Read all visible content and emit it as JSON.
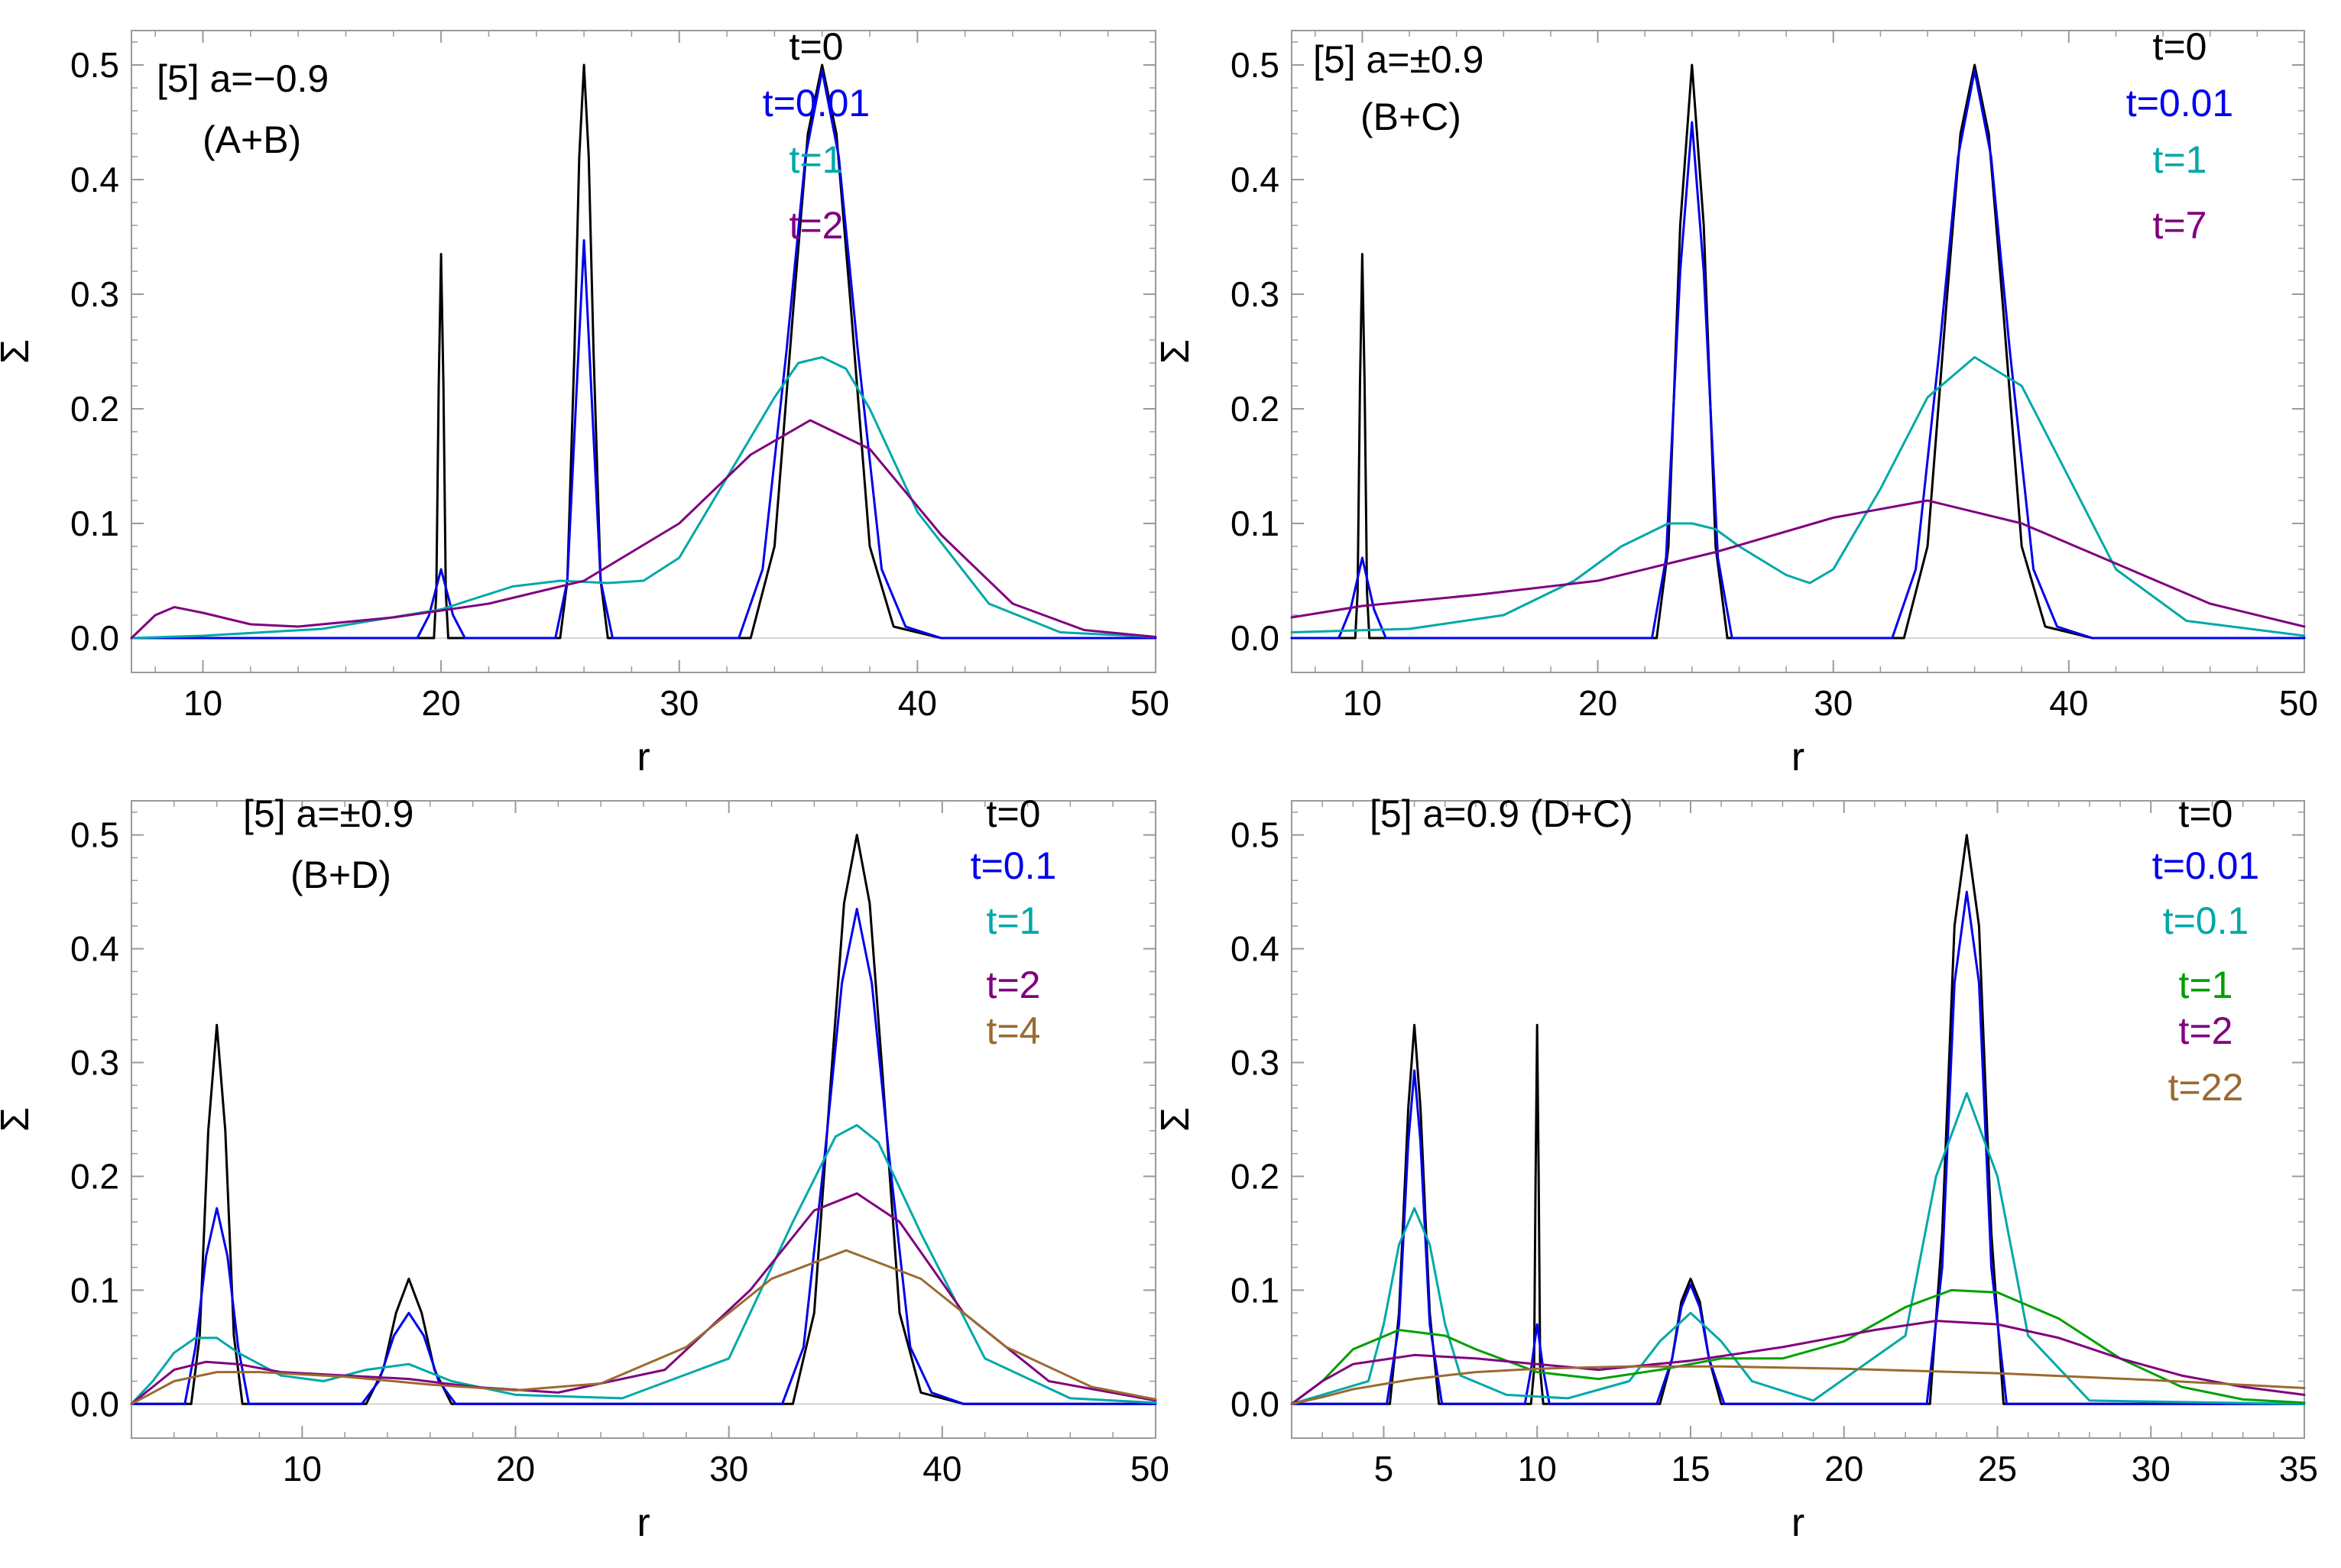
{
  "figure": {
    "panel_count": 4
  },
  "chart_data": [
    {
      "type": "line",
      "panel": "top-left",
      "annotations": [
        "[5] a=−0.9",
        "(A+B)"
      ],
      "xlabel": "r",
      "ylabel": "Σ",
      "xlim": [
        7,
        50
      ],
      "ylim": [
        -0.03,
        0.53
      ],
      "xticks": [
        10,
        20,
        30,
        40,
        50
      ],
      "yticks": [
        0.0,
        0.1,
        0.2,
        0.3,
        0.4,
        0.5
      ],
      "ytick_labels": [
        "0.0",
        "0.1",
        "0.2",
        "0.3",
        "0.4",
        "0.5"
      ],
      "legend": [
        "t=0",
        "t=0.01",
        "t=1",
        "t=2"
      ],
      "legend_position": "top-right",
      "series": [
        {
          "name": "t=0",
          "color": "#000000",
          "x": [
            7,
            19.7,
            19.8,
            19.9,
            20,
            20.1,
            20.2,
            20.3,
            25,
            25.3,
            25.6,
            25.8,
            26,
            26.2,
            26.4,
            26.7,
            27,
            33,
            34,
            34.8,
            35.4,
            36,
            36.6,
            37.2,
            38,
            39,
            41,
            50
          ],
          "y": [
            0,
            0,
            0.04,
            0.22,
            0.335,
            0.22,
            0.04,
            0,
            0,
            0.05,
            0.25,
            0.42,
            0.5,
            0.42,
            0.25,
            0.05,
            0,
            0,
            0.08,
            0.29,
            0.44,
            0.5,
            0.44,
            0.29,
            0.08,
            0.01,
            0,
            0
          ]
        },
        {
          "name": "t=0.01",
          "color": "#0000ee",
          "x": [
            7,
            19,
            19.5,
            20,
            20.5,
            21,
            24.8,
            25.3,
            25.7,
            26,
            26.3,
            26.7,
            27.2,
            32.5,
            33.5,
            34.5,
            35.3,
            36,
            36.7,
            37.5,
            38.5,
            39.5,
            41,
            50
          ],
          "y": [
            0,
            0,
            0.02,
            0.06,
            0.02,
            0,
            0,
            0.05,
            0.22,
            0.347,
            0.22,
            0.05,
            0,
            0,
            0.06,
            0.25,
            0.42,
            0.495,
            0.42,
            0.25,
            0.06,
            0.01,
            0,
            0
          ]
        },
        {
          "name": "t=1",
          "color": "#00a8a8",
          "x": [
            7,
            10,
            15,
            20,
            23,
            25,
            27,
            28.5,
            30,
            32,
            34,
            35,
            36,
            37,
            38,
            40,
            43,
            46,
            50
          ],
          "y": [
            0,
            0.002,
            0.008,
            0.025,
            0.045,
            0.05,
            0.048,
            0.05,
            0.07,
            0.14,
            0.21,
            0.24,
            0.245,
            0.235,
            0.2,
            0.11,
            0.03,
            0.005,
            0.001
          ]
        },
        {
          "name": "t=2",
          "color": "#800080",
          "x": [
            7,
            8,
            8.8,
            10,
            12,
            14,
            18,
            22,
            26,
            30,
            33,
            35.5,
            38,
            41,
            44,
            47,
            50
          ],
          "y": [
            0,
            0.02,
            0.027,
            0.022,
            0.012,
            0.01,
            0.018,
            0.03,
            0.05,
            0.1,
            0.16,
            0.19,
            0.165,
            0.09,
            0.03,
            0.007,
            0.001
          ]
        }
      ]
    },
    {
      "type": "line",
      "panel": "top-right",
      "annotations": [
        "[5] a=±0.9",
        "(B+C)"
      ],
      "xlabel": "r",
      "ylabel": "Σ",
      "xlim": [
        7,
        50
      ],
      "ylim": [
        -0.03,
        0.53
      ],
      "xticks": [
        10,
        20,
        30,
        40,
        50
      ],
      "yticks": [
        0.0,
        0.1,
        0.2,
        0.3,
        0.4,
        0.5
      ],
      "ytick_labels": [
        "0.0",
        "0.1",
        "0.2",
        "0.3",
        "0.4",
        "0.5"
      ],
      "legend": [
        "t=0",
        "t=0.01",
        "t=1",
        "t=7"
      ],
      "legend_position": "top-right",
      "series": [
        {
          "name": "t=0",
          "color": "#000000",
          "x": [
            7,
            9.7,
            9.8,
            9.9,
            10,
            10.1,
            10.2,
            10.3,
            22.5,
            23,
            23.5,
            24,
            24.5,
            25,
            25.5,
            33,
            34,
            34.8,
            35.4,
            36,
            36.6,
            37.2,
            38,
            39,
            41,
            50
          ],
          "y": [
            0,
            0,
            0.04,
            0.22,
            0.335,
            0.22,
            0.04,
            0,
            0,
            0.08,
            0.36,
            0.5,
            0.36,
            0.08,
            0,
            0,
            0.08,
            0.29,
            0.44,
            0.5,
            0.44,
            0.29,
            0.08,
            0.01,
            0,
            0
          ]
        },
        {
          "name": "t=0.01",
          "color": "#0000ee",
          "x": [
            7,
            9,
            9.5,
            10,
            10.5,
            11,
            22.3,
            22.9,
            23.5,
            24,
            24.5,
            25.1,
            25.7,
            32.5,
            33.5,
            34.5,
            35.3,
            36,
            36.7,
            37.5,
            38.5,
            39.5,
            41,
            50
          ],
          "y": [
            0,
            0,
            0.025,
            0.07,
            0.025,
            0,
            0,
            0.07,
            0.32,
            0.45,
            0.32,
            0.07,
            0,
            0,
            0.06,
            0.25,
            0.42,
            0.495,
            0.42,
            0.25,
            0.06,
            0.01,
            0,
            0
          ]
        },
        {
          "name": "t=1",
          "color": "#00a8a8",
          "x": [
            7,
            12,
            16,
            19,
            21,
            23,
            24,
            25,
            26,
            28,
            29,
            30,
            32,
            34,
            36,
            38,
            40,
            42,
            45,
            50
          ],
          "y": [
            0.005,
            0.008,
            0.02,
            0.05,
            0.08,
            0.1,
            0.1,
            0.095,
            0.08,
            0.055,
            0.048,
            0.06,
            0.13,
            0.21,
            0.245,
            0.22,
            0.14,
            0.06,
            0.015,
            0.002
          ]
        },
        {
          "name": "t=7",
          "color": "#800080",
          "x": [
            7,
            10,
            15,
            20,
            25,
            30,
            34,
            38,
            42,
            46,
            50
          ],
          "y": [
            0.018,
            0.028,
            0.038,
            0.05,
            0.075,
            0.105,
            0.12,
            0.1,
            0.065,
            0.03,
            0.01
          ]
        }
      ]
    },
    {
      "type": "line",
      "panel": "bottom-left",
      "annotations": [
        "[5] a=±0.9",
        "(B+D)"
      ],
      "xlabel": "r",
      "ylabel": "Σ",
      "xlim": [
        2,
        50
      ],
      "ylim": [
        -0.03,
        0.53
      ],
      "xticks": [
        10,
        20,
        30,
        40,
        50
      ],
      "yticks": [
        0.0,
        0.1,
        0.2,
        0.3,
        0.4,
        0.5
      ],
      "ytick_labels": [
        "0.0",
        "0.1",
        "0.2",
        "0.3",
        "0.4",
        "0.5"
      ],
      "legend": [
        "t=0",
        "t=0.1",
        "t=1",
        "t=2",
        "t=4"
      ],
      "legend_position": "top-right",
      "series": [
        {
          "name": "t=0",
          "color": "#000000",
          "x": [
            2,
            4.8,
            5.2,
            5.6,
            6,
            6.4,
            6.8,
            7.2,
            13,
            13.8,
            14.4,
            15,
            15.6,
            16.2,
            17,
            33,
            34,
            34.8,
            35.4,
            36,
            36.6,
            37.2,
            38,
            39,
            41,
            50
          ],
          "y": [
            0,
            0,
            0.06,
            0.24,
            0.333,
            0.24,
            0.06,
            0,
            0,
            0.03,
            0.08,
            0.11,
            0.08,
            0.03,
            0,
            0,
            0.08,
            0.29,
            0.44,
            0.5,
            0.44,
            0.29,
            0.08,
            0.01,
            0,
            0
          ]
        },
        {
          "name": "t=0.1",
          "color": "#0000ee",
          "x": [
            2,
            4.5,
            5,
            5.5,
            6,
            6.5,
            7,
            7.5,
            12.8,
            13.6,
            14.3,
            15,
            15.7,
            16.4,
            17.2,
            32.5,
            33.5,
            34.5,
            35.3,
            36,
            36.7,
            37.5,
            38.5,
            39.5,
            41,
            50
          ],
          "y": [
            0,
            0,
            0.05,
            0.13,
            0.172,
            0.13,
            0.05,
            0,
            0,
            0.02,
            0.06,
            0.08,
            0.06,
            0.02,
            0,
            0,
            0.05,
            0.22,
            0.37,
            0.435,
            0.37,
            0.22,
            0.05,
            0.01,
            0,
            0
          ]
        },
        {
          "name": "t=1",
          "color": "#00a8a8",
          "x": [
            2,
            3,
            4,
            5,
            6,
            7,
            9,
            11,
            13,
            15,
            17,
            20,
            25,
            30,
            33,
            35,
            36,
            37,
            39,
            42,
            46,
            50
          ],
          "y": [
            0,
            0.02,
            0.045,
            0.058,
            0.058,
            0.045,
            0.025,
            0.02,
            0.03,
            0.035,
            0.02,
            0.008,
            0.005,
            0.04,
            0.16,
            0.235,
            0.245,
            0.23,
            0.15,
            0.04,
            0.005,
            0.001
          ]
        },
        {
          "name": "t=2",
          "color": "#800080",
          "x": [
            2,
            3,
            4,
            5.5,
            7,
            9,
            12,
            15,
            18,
            22,
            27,
            31,
            34,
            36,
            38,
            41,
            45,
            50
          ],
          "y": [
            0,
            0.015,
            0.03,
            0.037,
            0.035,
            0.028,
            0.025,
            0.022,
            0.015,
            0.01,
            0.03,
            0.1,
            0.17,
            0.185,
            0.16,
            0.08,
            0.02,
            0.003
          ]
        },
        {
          "name": "t=4",
          "color": "#9a6a30",
          "x": [
            2,
            3,
            4,
            6,
            8,
            12,
            16,
            20,
            24,
            28,
            32,
            35.5,
            39,
            43,
            47,
            50
          ],
          "y": [
            0,
            0.01,
            0.02,
            0.028,
            0.028,
            0.024,
            0.017,
            0.012,
            0.018,
            0.05,
            0.11,
            0.135,
            0.11,
            0.05,
            0.015,
            0.004
          ]
        }
      ]
    },
    {
      "type": "line",
      "panel": "bottom-right",
      "annotations": [
        "[5] a=0.9 (D+C)"
      ],
      "xlabel": "r",
      "ylabel": "Σ",
      "xlim": [
        2,
        35
      ],
      "ylim": [
        -0.03,
        0.53
      ],
      "xticks": [
        5,
        10,
        15,
        20,
        25,
        30,
        35
      ],
      "yticks": [
        0.0,
        0.1,
        0.2,
        0.3,
        0.4,
        0.5
      ],
      "ytick_labels": [
        "0.0",
        "0.1",
        "0.2",
        "0.3",
        "0.4",
        "0.5"
      ],
      "legend": [
        "t=0",
        "t=0.01",
        "t=0.1",
        "t=1",
        "t=2",
        "t=22"
      ],
      "legend_position": "top-right",
      "series": [
        {
          "name": "t=0",
          "color": "#000000",
          "x": [
            2,
            5.2,
            5.5,
            5.8,
            6,
            6.2,
            6.5,
            6.8,
            9.8,
            9.9,
            9.95,
            10,
            10.05,
            10.1,
            10.2,
            14,
            14.4,
            14.7,
            15,
            15.3,
            15.6,
            16,
            22.8,
            23.2,
            23.6,
            24,
            24.4,
            24.8,
            25.2,
            35
          ],
          "y": [
            0,
            0,
            0.08,
            0.26,
            0.333,
            0.26,
            0.08,
            0,
            0,
            0.03,
            0.2,
            0.333,
            0.2,
            0.03,
            0,
            0,
            0.04,
            0.09,
            0.11,
            0.09,
            0.04,
            0,
            0,
            0.15,
            0.42,
            0.5,
            0.42,
            0.15,
            0,
            0
          ]
        },
        {
          "name": "t=0.01",
          "color": "#0000ee",
          "x": [
            2,
            5.1,
            5.5,
            5.8,
            6,
            6.2,
            6.5,
            6.9,
            9.6,
            9.8,
            10,
            10.2,
            10.4,
            13.9,
            14.4,
            14.7,
            15,
            15.3,
            15.6,
            16.1,
            22.7,
            23.2,
            23.6,
            24,
            24.4,
            24.8,
            25.3,
            35
          ],
          "y": [
            0,
            0,
            0.07,
            0.23,
            0.293,
            0.23,
            0.07,
            0,
            0,
            0.03,
            0.07,
            0.03,
            0,
            0,
            0.04,
            0.085,
            0.105,
            0.085,
            0.04,
            0,
            0,
            0.12,
            0.37,
            0.45,
            0.37,
            0.12,
            0,
            0
          ]
        },
        {
          "name": "t=0.1",
          "color": "#00a8a8",
          "x": [
            2,
            4.5,
            5,
            5.5,
            6,
            6.5,
            7,
            7.5,
            9,
            11,
            13,
            14,
            15,
            16,
            17,
            19,
            22,
            23,
            24,
            25,
            26,
            28,
            35
          ],
          "y": [
            0,
            0.02,
            0.07,
            0.14,
            0.172,
            0.14,
            0.07,
            0.025,
            0.008,
            0.005,
            0.02,
            0.055,
            0.08,
            0.055,
            0.02,
            0.003,
            0.06,
            0.2,
            0.273,
            0.2,
            0.06,
            0.003,
            0
          ]
        },
        {
          "name": "t=1",
          "color": "#00a000",
          "x": [
            2,
            3,
            4,
            5.5,
            7,
            8,
            10,
            12,
            14,
            16,
            18,
            20,
            22,
            23.5,
            25,
            27,
            29,
            31,
            33,
            35
          ],
          "y": [
            0,
            0.02,
            0.048,
            0.065,
            0.06,
            0.048,
            0.028,
            0.022,
            0.03,
            0.04,
            0.04,
            0.055,
            0.085,
            0.1,
            0.098,
            0.075,
            0.04,
            0.015,
            0.004,
            0.001
          ]
        },
        {
          "name": "t=2",
          "color": "#800080",
          "x": [
            2,
            3,
            4,
            6,
            8,
            10,
            12,
            15,
            18,
            21,
            23,
            25,
            27,
            29,
            31,
            33,
            35
          ],
          "y": [
            0,
            0.02,
            0.035,
            0.043,
            0.04,
            0.035,
            0.03,
            0.038,
            0.05,
            0.065,
            0.073,
            0.07,
            0.058,
            0.04,
            0.025,
            0.015,
            0.008
          ]
        },
        {
          "name": "t=22",
          "color": "#9a6a30",
          "x": [
            2,
            3,
            4,
            6,
            8,
            10,
            13,
            16,
            20,
            25,
            30,
            35
          ],
          "y": [
            0,
            0.006,
            0.013,
            0.022,
            0.028,
            0.031,
            0.033,
            0.033,
            0.031,
            0.027,
            0.021,
            0.014
          ]
        }
      ]
    }
  ]
}
